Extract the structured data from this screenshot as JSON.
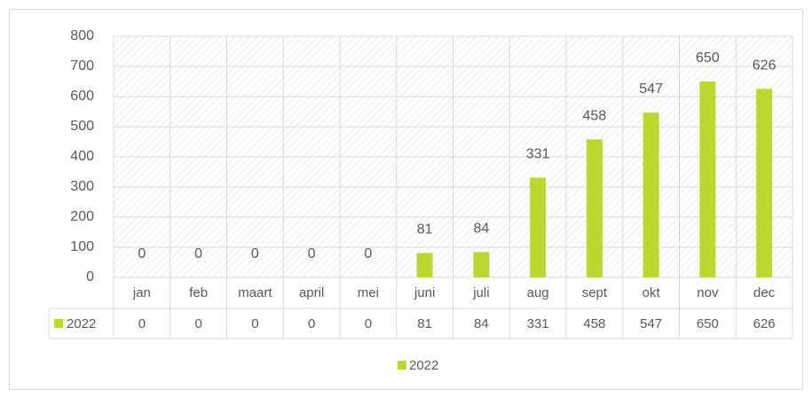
{
  "chart_data": {
    "type": "bar",
    "categories": [
      "jan",
      "feb",
      "maart",
      "april",
      "mei",
      "juni",
      "juli",
      "aug",
      "sept",
      "okt",
      "nov",
      "dec"
    ],
    "series": [
      {
        "name": "2022",
        "color": "#bed630",
        "values": [
          0,
          0,
          0,
          0,
          0,
          81,
          84,
          331,
          458,
          547,
          650,
          626
        ]
      }
    ],
    "ylim": [
      0,
      800
    ],
    "yticks": [
      0,
      100,
      200,
      300,
      400,
      500,
      600,
      700,
      800
    ],
    "grid": true,
    "data_table": true,
    "legend": "bottom"
  }
}
